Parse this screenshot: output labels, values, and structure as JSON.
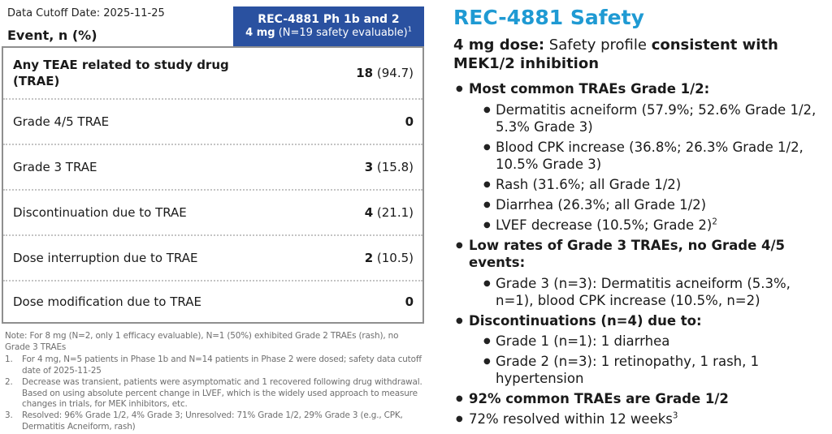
{
  "left": {
    "cutoff_label": "Data Cutoff Date: 2025-11-25",
    "event_header": "Event, n (%)",
    "column_header": {
      "line1": "REC-4881 Ph 1b and 2",
      "line2_runs": [
        {
          "t": "4 mg",
          "b": true
        },
        {
          "t": " (N=19 safety evaluable)"
        },
        {
          "t": "1",
          "sup": true
        }
      ]
    },
    "table_rows": [
      {
        "label": "Any TEAE related to study drug (TRAE)",
        "value_runs": [
          {
            "t": "18",
            "b": true
          },
          {
            "t": " (94.7)"
          }
        ]
      },
      {
        "label": "Grade 4/5 TRAE",
        "value_runs": [
          {
            "t": "0",
            "b": true
          }
        ]
      },
      {
        "label": "Grade 3 TRAE",
        "value_runs": [
          {
            "t": "3",
            "b": true
          },
          {
            "t": " (15.8)"
          }
        ]
      },
      {
        "label": "Discontinuation due to TRAE",
        "value_runs": [
          {
            "t": "4",
            "b": true
          },
          {
            "t": " (21.1)"
          }
        ]
      },
      {
        "label": "Dose interruption due to TRAE",
        "value_runs": [
          {
            "t": "2",
            "b": true
          },
          {
            "t": " (10.5)"
          }
        ]
      },
      {
        "label": "Dose modification due to TRAE",
        "value_runs": [
          {
            "t": "0",
            "b": true
          }
        ]
      }
    ],
    "note": "Note: For 8 mg (N=2, only 1 efficacy evaluable), N=1 (50%) exhibited Grade 2 TRAEs (rash), no Grade 3 TRAEs",
    "footnotes": [
      {
        "num": "1.",
        "text": "For 4 mg, N=5 patients in Phase 1b and N=14 patients in Phase 2 were dosed; safety data cutoff date of 2025-11-25"
      },
      {
        "num": "2.",
        "text": "Decrease was transient, patients were asymptomatic and 1 recovered following drug withdrawal. Based on using absolute percent change in LVEF, which is the widely used approach to measure changes in trials, for MEK inhibitors, etc."
      },
      {
        "num": "3.",
        "text": "Resolved: 96% Grade 1/2, 4% Grade 3; Unresolved: 71% Grade 1/2, 29% Grade 3 (e.g., CPK, Dermatitis Acneiform, rash)"
      }
    ]
  },
  "right": {
    "title": "REC-4881 Safety",
    "subtitle_runs": [
      {
        "t": "4 mg dose:",
        "b": true
      },
      {
        "t": " Safety profile "
      },
      {
        "t": "consistent with MEK1/2 inhibition",
        "b": true
      }
    ],
    "bullets": [
      {
        "level": 1,
        "bold": true,
        "runs": [
          {
            "t": "Most common TRAEs Grade 1/2:"
          }
        ]
      },
      {
        "level": 2,
        "bold": false,
        "runs": [
          {
            "t": "Dermatitis acneiform (57.9%; 52.6% Grade 1/2, 5.3% Grade 3)"
          }
        ]
      },
      {
        "level": 2,
        "bold": false,
        "runs": [
          {
            "t": "Blood CPK increase (36.8%; 26.3% Grade 1/2, 10.5% Grade 3)"
          }
        ]
      },
      {
        "level": 2,
        "bold": false,
        "runs": [
          {
            "t": "Rash (31.6%; all Grade 1/2)"
          }
        ]
      },
      {
        "level": 2,
        "bold": false,
        "runs": [
          {
            "t": "Diarrhea (26.3%; all Grade 1/2)"
          }
        ]
      },
      {
        "level": 2,
        "bold": false,
        "runs": [
          {
            "t": "LVEF decrease (10.5%; Grade 2)"
          },
          {
            "t": "2",
            "sup": true
          }
        ]
      },
      {
        "level": 1,
        "bold": true,
        "runs": [
          {
            "t": "Low rates of Grade 3 TRAEs, no Grade 4/5 events:"
          }
        ]
      },
      {
        "level": 2,
        "bold": false,
        "runs": [
          {
            "t": "Grade 3 (n=3): Dermatitis acneiform (5.3%, n=1), blood CPK increase (10.5%, n=2)"
          }
        ]
      },
      {
        "level": 1,
        "bold": true,
        "runs": [
          {
            "t": "Discontinuations (n=4) due to:"
          }
        ]
      },
      {
        "level": 2,
        "bold": false,
        "runs": [
          {
            "t": "Grade 1 (n=1): 1 diarrhea"
          }
        ]
      },
      {
        "level": 2,
        "bold": false,
        "runs": [
          {
            "t": "Grade 2 (n=3): 1 retinopathy, 1 rash, 1 hypertension"
          }
        ]
      },
      {
        "level": 1,
        "bold": true,
        "runs": [
          {
            "t": "92% common TRAEs are Grade 1/2"
          }
        ]
      },
      {
        "level": 1,
        "bold": false,
        "runs": [
          {
            "t": "72% resolved within 12 weeks"
          },
          {
            "t": "3",
            "sup": true
          }
        ]
      }
    ]
  },
  "colors": {
    "header_blue": "#2a51a0",
    "title_cyan": "#1f9ad3"
  }
}
